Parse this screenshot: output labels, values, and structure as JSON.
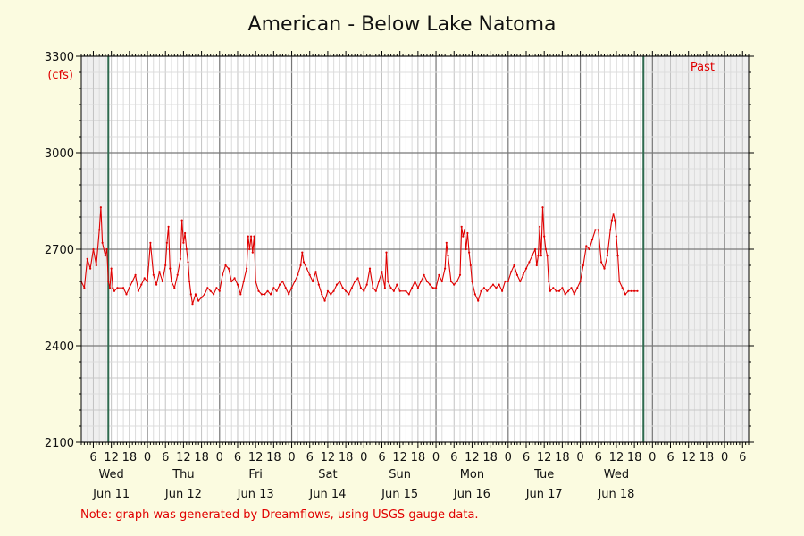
{
  "chart_data": {
    "type": "line",
    "title": "American - Below Lake Natoma",
    "unit_label": "(cfs)",
    "past_label": "Past",
    "note": "Note: graph was generated by Dreamflows, using USGS gauge data.",
    "ylim": [
      2100,
      3300
    ],
    "y_ticks": [
      2100,
      2400,
      2700,
      3000,
      3300
    ],
    "x_range_hours": [
      2,
      224
    ],
    "x_hour_ticks": [
      {
        "h": 6,
        "label": "6"
      },
      {
        "h": 12,
        "label": "12"
      },
      {
        "h": 18,
        "label": "18"
      },
      {
        "h": 24,
        "label": "0"
      },
      {
        "h": 30,
        "label": "6"
      },
      {
        "h": 36,
        "label": "12"
      },
      {
        "h": 42,
        "label": "18"
      },
      {
        "h": 48,
        "label": "0"
      },
      {
        "h": 54,
        "label": "6"
      },
      {
        "h": 60,
        "label": "12"
      },
      {
        "h": 66,
        "label": "18"
      },
      {
        "h": 72,
        "label": "0"
      },
      {
        "h": 78,
        "label": "6"
      },
      {
        "h": 84,
        "label": "12"
      },
      {
        "h": 90,
        "label": "18"
      },
      {
        "h": 96,
        "label": "0"
      },
      {
        "h": 102,
        "label": "6"
      },
      {
        "h": 108,
        "label": "12"
      },
      {
        "h": 114,
        "label": "18"
      },
      {
        "h": 120,
        "label": "0"
      },
      {
        "h": 126,
        "label": "6"
      },
      {
        "h": 132,
        "label": "12"
      },
      {
        "h": 138,
        "label": "18"
      },
      {
        "h": 144,
        "label": "0"
      },
      {
        "h": 150,
        "label": "6"
      },
      {
        "h": 156,
        "label": "12"
      },
      {
        "h": 162,
        "label": "18"
      },
      {
        "h": 168,
        "label": "0"
      },
      {
        "h": 174,
        "label": "6"
      },
      {
        "h": 180,
        "label": "12"
      },
      {
        "h": 186,
        "label": "18"
      },
      {
        "h": 192,
        "label": "0"
      },
      {
        "h": 198,
        "label": "6"
      },
      {
        "h": 204,
        "label": "12"
      },
      {
        "h": 210,
        "label": "18"
      },
      {
        "h": 216,
        "label": "0"
      },
      {
        "h": 222,
        "label": "6"
      }
    ],
    "day_labels": [
      {
        "h": 12,
        "day": "Wed",
        "date": "Jun 11"
      },
      {
        "h": 36,
        "day": "Thu",
        "date": "Jun 12"
      },
      {
        "h": 60,
        "day": "Fri",
        "date": "Jun 13"
      },
      {
        "h": 84,
        "day": "Sat",
        "date": "Jun 14"
      },
      {
        "h": 108,
        "day": "Sun",
        "date": "Jun 15"
      },
      {
        "h": 132,
        "day": "Mon",
        "date": "Jun 16"
      },
      {
        "h": 156,
        "day": "Tue",
        "date": "Jun 17"
      },
      {
        "h": 180,
        "day": "Wed",
        "date": "Jun 18"
      }
    ],
    "shaded_before_hour": 11,
    "shaded_after_hour": 189,
    "grid": true,
    "series": [
      {
        "color": "#e00000",
        "points": [
          [
            2,
            2600
          ],
          [
            3,
            2580
          ],
          [
            4,
            2670
          ],
          [
            5,
            2640
          ],
          [
            6,
            2700
          ],
          [
            7,
            2650
          ],
          [
            8,
            2760
          ],
          [
            8.5,
            2830
          ],
          [
            9,
            2720
          ],
          [
            10,
            2680
          ],
          [
            10.5,
            2700
          ],
          [
            11,
            2600
          ],
          [
            11.5,
            2580
          ],
          [
            12,
            2640
          ],
          [
            12.5,
            2580
          ],
          [
            13,
            2570
          ],
          [
            14,
            2580
          ],
          [
            16,
            2580
          ],
          [
            17,
            2560
          ],
          [
            18,
            2580
          ],
          [
            19,
            2600
          ],
          [
            20,
            2620
          ],
          [
            21,
            2570
          ],
          [
            22,
            2590
          ],
          [
            23,
            2610
          ],
          [
            24,
            2600
          ],
          [
            25,
            2720
          ],
          [
            26,
            2620
          ],
          [
            27,
            2590
          ],
          [
            28,
            2630
          ],
          [
            29,
            2600
          ],
          [
            30,
            2650
          ],
          [
            30.5,
            2720
          ],
          [
            31,
            2770
          ],
          [
            31.5,
            2640
          ],
          [
            32,
            2600
          ],
          [
            33,
            2580
          ],
          [
            34,
            2620
          ],
          [
            35,
            2670
          ],
          [
            35.5,
            2790
          ],
          [
            36,
            2720
          ],
          [
            36.5,
            2750
          ],
          [
            37,
            2700
          ],
          [
            37.5,
            2660
          ],
          [
            38,
            2600
          ],
          [
            38.5,
            2560
          ],
          [
            39,
            2530
          ],
          [
            40,
            2560
          ],
          [
            41,
            2540
          ],
          [
            42,
            2550
          ],
          [
            43,
            2560
          ],
          [
            44,
            2580
          ],
          [
            45,
            2570
          ],
          [
            46,
            2560
          ],
          [
            47,
            2580
          ],
          [
            48,
            2570
          ],
          [
            49,
            2620
          ],
          [
            50,
            2650
          ],
          [
            51,
            2640
          ],
          [
            52,
            2600
          ],
          [
            53,
            2610
          ],
          [
            54,
            2590
          ],
          [
            55,
            2560
          ],
          [
            56,
            2600
          ],
          [
            57,
            2640
          ],
          [
            57.5,
            2740
          ],
          [
            58,
            2700
          ],
          [
            58.5,
            2740
          ],
          [
            59,
            2690
          ],
          [
            59.5,
            2740
          ],
          [
            60,
            2600
          ],
          [
            61,
            2570
          ],
          [
            62,
            2560
          ],
          [
            63,
            2560
          ],
          [
            64,
            2570
          ],
          [
            65,
            2560
          ],
          [
            66,
            2580
          ],
          [
            67,
            2570
          ],
          [
            68,
            2590
          ],
          [
            69,
            2600
          ],
          [
            70,
            2580
          ],
          [
            71,
            2560
          ],
          [
            72,
            2580
          ],
          [
            73,
            2600
          ],
          [
            74,
            2620
          ],
          [
            75,
            2650
          ],
          [
            75.5,
            2690
          ],
          [
            76,
            2660
          ],
          [
            77,
            2640
          ],
          [
            78,
            2620
          ],
          [
            79,
            2600
          ],
          [
            80,
            2630
          ],
          [
            81,
            2590
          ],
          [
            82,
            2560
          ],
          [
            83,
            2540
          ],
          [
            84,
            2570
          ],
          [
            85,
            2560
          ],
          [
            86,
            2570
          ],
          [
            87,
            2590
          ],
          [
            88,
            2600
          ],
          [
            89,
            2580
          ],
          [
            90,
            2570
          ],
          [
            91,
            2560
          ],
          [
            92,
            2580
          ],
          [
            93,
            2600
          ],
          [
            94,
            2610
          ],
          [
            95,
            2580
          ],
          [
            96,
            2570
          ],
          [
            97,
            2590
          ],
          [
            98,
            2640
          ],
          [
            99,
            2580
          ],
          [
            100,
            2570
          ],
          [
            101,
            2600
          ],
          [
            102,
            2630
          ],
          [
            103,
            2580
          ],
          [
            103.5,
            2690
          ],
          [
            104,
            2600
          ],
          [
            105,
            2580
          ],
          [
            106,
            2570
          ],
          [
            107,
            2590
          ],
          [
            108,
            2570
          ],
          [
            110,
            2570
          ],
          [
            111,
            2560
          ],
          [
            112,
            2580
          ],
          [
            113,
            2600
          ],
          [
            114,
            2580
          ],
          [
            115,
            2600
          ],
          [
            116,
            2620
          ],
          [
            117,
            2600
          ],
          [
            118,
            2590
          ],
          [
            119,
            2580
          ],
          [
            120,
            2580
          ],
          [
            121,
            2620
          ],
          [
            122,
            2600
          ],
          [
            123,
            2640
          ],
          [
            123.5,
            2720
          ],
          [
            124,
            2680
          ],
          [
            125,
            2600
          ],
          [
            126,
            2590
          ],
          [
            127,
            2600
          ],
          [
            128,
            2620
          ],
          [
            128.5,
            2770
          ],
          [
            129,
            2740
          ],
          [
            129.5,
            2760
          ],
          [
            130,
            2700
          ],
          [
            130.5,
            2750
          ],
          [
            131,
            2690
          ],
          [
            131.5,
            2650
          ],
          [
            132,
            2600
          ],
          [
            133,
            2560
          ],
          [
            134,
            2540
          ],
          [
            135,
            2570
          ],
          [
            136,
            2580
          ],
          [
            137,
            2570
          ],
          [
            138,
            2580
          ],
          [
            139,
            2590
          ],
          [
            140,
            2580
          ],
          [
            141,
            2590
          ],
          [
            142,
            2570
          ],
          [
            143,
            2600
          ],
          [
            144,
            2600
          ],
          [
            145,
            2630
          ],
          [
            146,
            2650
          ],
          [
            147,
            2620
          ],
          [
            148,
            2600
          ],
          [
            149,
            2620
          ],
          [
            150,
            2640
          ],
          [
            151,
            2660
          ],
          [
            152,
            2680
          ],
          [
            153,
            2700
          ],
          [
            153.5,
            2650
          ],
          [
            154,
            2680
          ],
          [
            154.5,
            2770
          ],
          [
            155,
            2680
          ],
          [
            155.5,
            2830
          ],
          [
            156,
            2740
          ],
          [
            156.5,
            2700
          ],
          [
            157,
            2680
          ],
          [
            157.5,
            2600
          ],
          [
            158,
            2570
          ],
          [
            159,
            2580
          ],
          [
            160,
            2570
          ],
          [
            161,
            2570
          ],
          [
            162,
            2580
          ],
          [
            163,
            2560
          ],
          [
            164,
            2570
          ],
          [
            165,
            2580
          ],
          [
            166,
            2560
          ],
          [
            167,
            2580
          ],
          [
            168,
            2600
          ],
          [
            169,
            2650
          ],
          [
            170,
            2710
          ],
          [
            171,
            2700
          ],
          [
            172,
            2730
          ],
          [
            173,
            2760
          ],
          [
            174,
            2760
          ],
          [
            175,
            2660
          ],
          [
            176,
            2640
          ],
          [
            177,
            2680
          ],
          [
            178,
            2760
          ],
          [
            178.5,
            2790
          ],
          [
            179,
            2810
          ],
          [
            179.5,
            2790
          ],
          [
            180,
            2740
          ],
          [
            180.5,
            2680
          ],
          [
            181,
            2600
          ],
          [
            182,
            2580
          ],
          [
            183,
            2560
          ],
          [
            184,
            2570
          ],
          [
            185,
            2570
          ],
          [
            186,
            2570
          ],
          [
            187,
            2570
          ]
        ]
      }
    ]
  }
}
